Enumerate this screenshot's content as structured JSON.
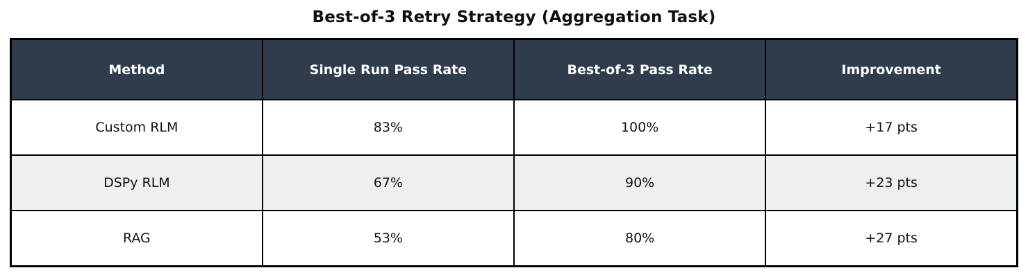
{
  "colors": {
    "header_bg": "#2e3c4e",
    "header_text": "#ffffff",
    "alt_row_bg": "#ecf0f1",
    "row_bg": "#ffffff",
    "border": "#000000",
    "title_text": "#0e0e0e"
  },
  "chart_data": {
    "type": "table",
    "title": "Best-of-3 Retry Strategy (Aggregation Task)",
    "columns": [
      "Method",
      "Single Run Pass Rate",
      "Best-of-3 Pass Rate",
      "Improvement"
    ],
    "rows": [
      [
        "Custom RLM",
        "83%",
        "100%",
        "+17 pts"
      ],
      [
        "DSPy RLM",
        "67%",
        "90%",
        "+23 pts"
      ],
      [
        "RAG",
        "53%",
        "80%",
        "+27 pts"
      ]
    ],
    "layout": {
      "columns_equal_width": true,
      "alternating_row_shading": true,
      "title_position": "top-center"
    }
  }
}
